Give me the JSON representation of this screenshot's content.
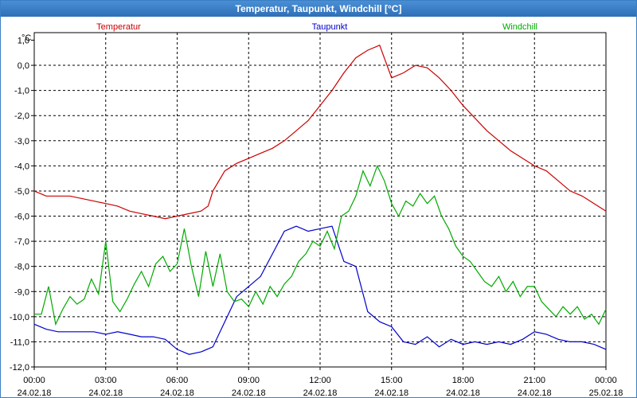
{
  "window_title": "Temperatur, Taupunkt, Windchill [°C]",
  "chart_data": {
    "type": "line",
    "title": "Temperatur, Taupunkt, Windchill [°C]",
    "ylabel": "°C",
    "ylim": [
      -12,
      1.3
    ],
    "xlim": [
      0,
      24
    ],
    "grid": true,
    "y_ticks": [
      "1,0",
      "0,0",
      "-1,0",
      "-2,0",
      "-3,0",
      "-4,0",
      "-5,0",
      "-6,0",
      "-7,0",
      "-8,0",
      "-9,0",
      "-10,0",
      "-11,0",
      "-12,0"
    ],
    "x_ticks": [
      {
        "time": "00:00",
        "date": "24.02.18"
      },
      {
        "time": "03:00",
        "date": "24.02.18"
      },
      {
        "time": "06:00",
        "date": "24.02.18"
      },
      {
        "time": "09:00",
        "date": "24.02.18"
      },
      {
        "time": "12:00",
        "date": "24.02.18"
      },
      {
        "time": "15:00",
        "date": "24.02.18"
      },
      {
        "time": "18:00",
        "date": "24.02.18"
      },
      {
        "time": "21:00",
        "date": "24.02.18"
      },
      {
        "time": "00:00",
        "date": "25.02.18"
      }
    ],
    "series": [
      {
        "name": "Temperatur",
        "color": "#cc0000",
        "x": [
          0,
          0.5,
          1,
          1.5,
          2,
          2.5,
          3,
          3.5,
          4,
          4.5,
          5,
          5.5,
          6,
          6.5,
          7,
          7.3,
          7.5,
          8,
          8.5,
          9,
          9.5,
          10,
          10.5,
          11,
          11.5,
          12,
          12.5,
          13,
          13.5,
          14,
          14.5,
          15,
          15.5,
          16,
          16.5,
          17,
          17.5,
          18,
          18.5,
          19,
          19.5,
          20,
          20.5,
          21,
          21.5,
          22,
          22.5,
          23,
          23.5,
          24
        ],
        "values": [
          -5.0,
          -5.2,
          -5.2,
          -5.2,
          -5.3,
          -5.4,
          -5.5,
          -5.6,
          -5.8,
          -5.9,
          -6.0,
          -6.1,
          -6.0,
          -5.9,
          -5.8,
          -5.6,
          -5.0,
          -4.2,
          -3.9,
          -3.7,
          -3.5,
          -3.3,
          -3.0,
          -2.6,
          -2.2,
          -1.6,
          -1.0,
          -0.3,
          0.3,
          0.6,
          0.8,
          -0.5,
          -0.3,
          0.0,
          -0.1,
          -0.5,
          -1.0,
          -1.6,
          -2.1,
          -2.6,
          -3.0,
          -3.4,
          -3.7,
          -4.0,
          -4.2,
          -4.6,
          -5.0,
          -5.2,
          -5.5,
          -5.8
        ]
      },
      {
        "name": "Taupunkt",
        "color": "#0000cc",
        "x": [
          0,
          0.5,
          1,
          1.5,
          2,
          2.5,
          3,
          3.5,
          4,
          4.5,
          5,
          5.5,
          6,
          6.5,
          7,
          7.5,
          8,
          8.5,
          9,
          9.5,
          10,
          10.5,
          11,
          11.5,
          12,
          12.5,
          13,
          13.5,
          14,
          14.5,
          15,
          15.5,
          16,
          16.5,
          17,
          17.5,
          18,
          18.5,
          19,
          19.5,
          20,
          20.5,
          21,
          21.5,
          22,
          22.5,
          23,
          23.5,
          24
        ],
        "values": [
          -10.3,
          -10.5,
          -10.6,
          -10.6,
          -10.6,
          -10.6,
          -10.7,
          -10.6,
          -10.7,
          -10.8,
          -10.8,
          -10.9,
          -11.3,
          -11.5,
          -11.4,
          -11.2,
          -10.2,
          -9.2,
          -8.8,
          -8.4,
          -7.5,
          -6.6,
          -6.4,
          -6.6,
          -6.5,
          -6.4,
          -7.8,
          -8.0,
          -9.8,
          -10.2,
          -10.4,
          -11.0,
          -11.1,
          -10.8,
          -11.2,
          -10.9,
          -11.1,
          -11.0,
          -11.1,
          -11.0,
          -11.1,
          -10.9,
          -10.6,
          -10.7,
          -10.9,
          -11.0,
          -11.0,
          -11.1,
          -11.3
        ]
      },
      {
        "name": "Windchill",
        "color": "#00aa00",
        "x": [
          0,
          0.3,
          0.6,
          0.9,
          1.2,
          1.5,
          1.8,
          2.1,
          2.4,
          2.7,
          3,
          3.3,
          3.6,
          3.9,
          4.2,
          4.5,
          4.8,
          5.1,
          5.4,
          5.7,
          6,
          6.3,
          6.6,
          6.9,
          7.2,
          7.5,
          7.8,
          8.1,
          8.4,
          8.7,
          9,
          9.3,
          9.6,
          9.9,
          10.2,
          10.5,
          10.8,
          11.1,
          11.4,
          11.7,
          12,
          12.3,
          12.6,
          12.9,
          13.2,
          13.5,
          13.8,
          14.1,
          14.4,
          14.7,
          15,
          15.3,
          15.6,
          15.9,
          16.2,
          16.5,
          16.8,
          17.1,
          17.4,
          17.7,
          18,
          18.3,
          18.6,
          18.9,
          19.2,
          19.5,
          19.8,
          20.1,
          20.4,
          20.7,
          21,
          21.3,
          21.6,
          21.9,
          22.2,
          22.5,
          22.8,
          23.1,
          23.4,
          23.7,
          24
        ],
        "values": [
          -9.9,
          -9.9,
          -8.8,
          -10.3,
          -9.7,
          -9.2,
          -9.5,
          -9.3,
          -8.5,
          -9.1,
          -7.0,
          -9.4,
          -9.8,
          -9.3,
          -8.7,
          -8.2,
          -8.8,
          -7.9,
          -7.6,
          -8.2,
          -7.9,
          -6.5,
          -8.0,
          -9.2,
          -7.4,
          -8.8,
          -7.5,
          -9.0,
          -9.4,
          -9.3,
          -9.6,
          -9.0,
          -9.5,
          -8.8,
          -9.2,
          -8.7,
          -8.4,
          -7.8,
          -7.5,
          -7.0,
          -7.2,
          -6.6,
          -7.3,
          -6.0,
          -5.8,
          -5.2,
          -4.2,
          -4.8,
          -4.0,
          -4.6,
          -5.5,
          -6.0,
          -5.4,
          -5.6,
          -5.1,
          -5.5,
          -5.2,
          -6.0,
          -6.5,
          -7.2,
          -7.6,
          -7.8,
          -8.2,
          -8.6,
          -8.8,
          -8.4,
          -9.0,
          -8.6,
          -9.2,
          -8.8,
          -8.8,
          -9.4,
          -9.7,
          -10.0,
          -9.6,
          -9.9,
          -9.6,
          -10.1,
          -9.9,
          -10.3,
          -9.7
        ]
      }
    ]
  }
}
